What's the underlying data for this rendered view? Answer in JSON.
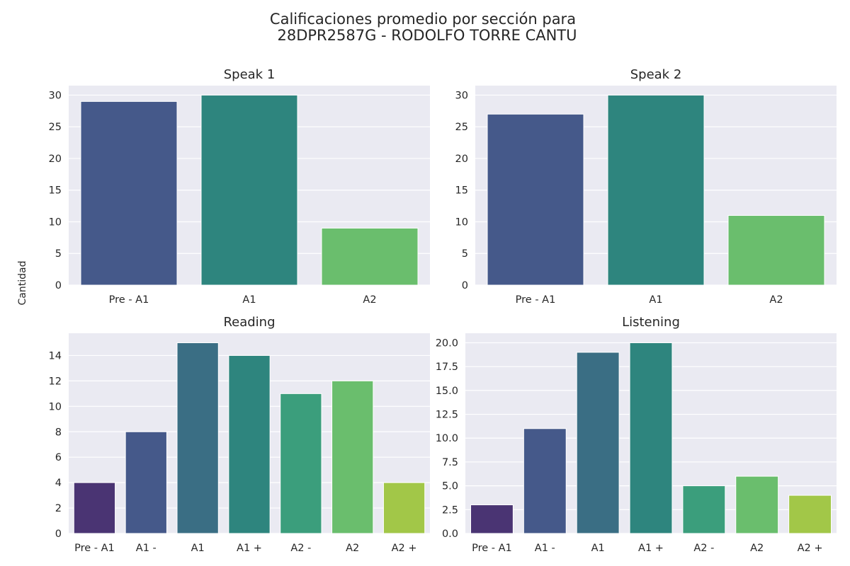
{
  "figure": {
    "title_lines": [
      "Calificaciones promedio por sección para",
      "28DPR2587G - RODOLFO TORRE CANTU"
    ],
    "ylabel": "Cantidad"
  },
  "colors": {
    "background": "#eaeaf2",
    "grid": "#ffffff",
    "viridis3": [
      "#45598a",
      "#2e857e",
      "#6abe6d"
    ],
    "viridis7": [
      "#4a3473",
      "#45598a",
      "#3a6e84",
      "#2e857e",
      "#3b9e7c",
      "#6abe6d",
      "#a2c748"
    ]
  },
  "chart_data": [
    {
      "type": "bar",
      "title": "Speak 1",
      "categories": [
        "Pre - A1",
        "A1",
        "A2"
      ],
      "values": [
        29,
        30,
        9
      ],
      "ylim": [
        0,
        31.5
      ],
      "yticks": [
        0,
        5,
        10,
        15,
        20,
        25,
        30
      ],
      "ytick_labels": [
        "0",
        "5",
        "10",
        "15",
        "20",
        "25",
        "30"
      ],
      "grid": true
    },
    {
      "type": "bar",
      "title": "Speak 2",
      "categories": [
        "Pre - A1",
        "A1",
        "A2"
      ],
      "values": [
        27,
        30,
        11
      ],
      "ylim": [
        0,
        31.5
      ],
      "yticks": [
        0,
        5,
        10,
        15,
        20,
        25,
        30
      ],
      "ytick_labels": [
        "0",
        "5",
        "10",
        "15",
        "20",
        "25",
        "30"
      ],
      "grid": true
    },
    {
      "type": "bar",
      "title": "Reading",
      "categories": [
        "Pre - A1",
        "A1 -",
        "A1",
        "A1 +",
        "A2 -",
        "A2",
        "A2 +"
      ],
      "values": [
        4,
        8,
        15,
        14,
        11,
        12,
        4
      ],
      "ylim": [
        0,
        15.75
      ],
      "yticks": [
        0,
        2,
        4,
        6,
        8,
        10,
        12,
        14
      ],
      "ytick_labels": [
        "0",
        "2",
        "4",
        "6",
        "8",
        "10",
        "12",
        "14"
      ],
      "grid": true
    },
    {
      "type": "bar",
      "title": "Listening",
      "categories": [
        "Pre - A1",
        "A1 -",
        "A1",
        "A1 +",
        "A2 -",
        "A2",
        "A2 +"
      ],
      "values": [
        3,
        11,
        19,
        20,
        5,
        6,
        4
      ],
      "ylim": [
        0,
        21
      ],
      "yticks": [
        0,
        2.5,
        5,
        7.5,
        10,
        12.5,
        15,
        17.5,
        20
      ],
      "ytick_labels": [
        "0.0",
        "2.5",
        "5.0",
        "7.5",
        "10.0",
        "12.5",
        "15.0",
        "17.5",
        "20.0"
      ],
      "grid": true
    }
  ]
}
